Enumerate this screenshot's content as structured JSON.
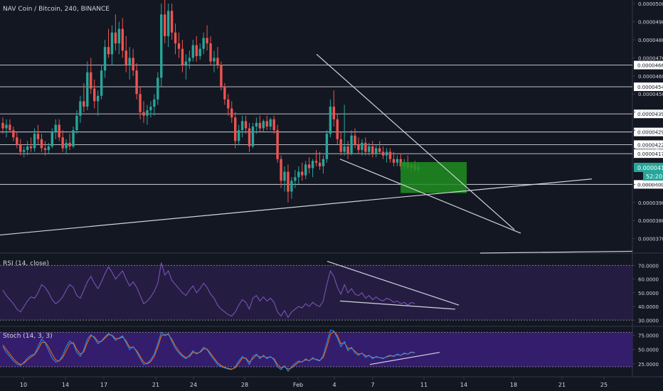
{
  "header": {
    "title": "NAV Coin / Bitcoin, 240, BINANCE"
  },
  "colors": {
    "background": "#131722",
    "up": "#26a69a",
    "down": "#ef5350",
    "rsi_line": "#7e57c2",
    "stoch_k": "#2196f3",
    "stoch_d": "#ff6d00",
    "band": "#2a1f4a",
    "stoch_band": "#3c1f7a",
    "drawing": "#d1d4dc",
    "box": "#1e8e1e",
    "axis_text": "#d1d4dc"
  },
  "chart_data": [
    {
      "type": "candlestick",
      "panel": "price",
      "title": "NAV Coin / Bitcoin, 240, BINANCE",
      "y_axis_ticks": [
        "0.0000500",
        "0.0000490",
        "0.0000480",
        "0.0000470",
        "0.0000460",
        "0.0000450",
        "0.0000440",
        "0.0000430",
        "0.0000420",
        "0.0000410",
        "0.0000400",
        "0.0000390",
        "0.0000380",
        "0.0000370"
      ],
      "horizontal_levels": [
        "0.0000466",
        "0.0000454",
        "0.0000439",
        "0.0000429",
        "0.0000422",
        "0.0000417",
        "0.0000400"
      ],
      "current_price": "0.0000410",
      "countdown": "52:20",
      "candles": [
        [
          4.34e-05,
          4.37e-05,
          4.28e-05,
          4.31e-05
        ],
        [
          4.31e-05,
          4.36e-05,
          4.26e-05,
          4.33e-05
        ],
        [
          4.33e-05,
          4.36e-05,
          4.29e-05,
          4.3e-05
        ],
        [
          4.3e-05,
          4.32e-05,
          4.24e-05,
          4.26e-05
        ],
        [
          4.26e-05,
          4.29e-05,
          4.2e-05,
          4.22e-05
        ],
        [
          4.22e-05,
          4.25e-05,
          4.16e-05,
          4.18e-05
        ],
        [
          4.18e-05,
          4.21e-05,
          4.15e-05,
          4.19e-05
        ],
        [
          4.19e-05,
          4.24e-05,
          4.16e-05,
          4.21e-05
        ],
        [
          4.21e-05,
          4.26e-05,
          4.18e-05,
          4.2e-05
        ],
        [
          4.2e-05,
          4.31e-05,
          4.18e-05,
          4.28e-05
        ],
        [
          4.28e-05,
          4.33e-05,
          4.22e-05,
          4.25e-05
        ],
        [
          4.25e-05,
          4.28e-05,
          4.18e-05,
          4.2e-05
        ],
        [
          4.2e-05,
          4.24e-05,
          4.16e-05,
          4.19e-05
        ],
        [
          4.19e-05,
          4.23e-05,
          4.17e-05,
          4.21e-05
        ],
        [
          4.21e-05,
          4.31e-05,
          4.2e-05,
          4.29e-05
        ],
        [
          4.29e-05,
          4.36e-05,
          4.25e-05,
          4.33e-05
        ],
        [
          4.33e-05,
          4.36e-05,
          4.24e-05,
          4.26e-05
        ],
        [
          4.26e-05,
          4.3e-05,
          4.18e-05,
          4.2e-05
        ],
        [
          4.2e-05,
          4.25e-05,
          4.17e-05,
          4.23e-05
        ],
        [
          4.23e-05,
          4.28e-05,
          4.19e-05,
          4.21e-05
        ],
        [
          4.21e-05,
          4.32e-05,
          4.2e-05,
          4.3e-05
        ],
        [
          4.3e-05,
          4.41e-05,
          4.28e-05,
          4.38e-05
        ],
        [
          4.38e-05,
          4.49e-05,
          4.34e-05,
          4.46e-05
        ],
        [
          4.46e-05,
          4.56e-05,
          4.4e-05,
          4.43e-05
        ],
        [
          4.43e-05,
          4.68e-05,
          4.41e-05,
          4.62e-05
        ],
        [
          4.62e-05,
          4.7e-05,
          4.5e-05,
          4.53e-05
        ],
        [
          4.53e-05,
          4.58e-05,
          4.42e-05,
          4.46e-05
        ],
        [
          4.46e-05,
          4.52e-05,
          4.38e-05,
          4.49e-05
        ],
        [
          4.49e-05,
          4.66e-05,
          4.47e-05,
          4.63e-05
        ],
        [
          4.63e-05,
          4.8e-05,
          4.59e-05,
          4.76e-05
        ],
        [
          4.76e-05,
          4.86e-05,
          4.7e-05,
          4.72e-05
        ],
        [
          4.72e-05,
          4.88e-05,
          4.66e-05,
          4.84e-05
        ],
        [
          4.84e-05,
          4.94e-05,
          4.74e-05,
          4.78e-05
        ],
        [
          4.78e-05,
          4.9e-05,
          4.72e-05,
          4.86e-05
        ],
        [
          4.86e-05,
          4.92e-05,
          4.7e-05,
          4.74e-05
        ],
        [
          4.74e-05,
          4.82e-05,
          4.62e-05,
          4.66e-05
        ],
        [
          4.66e-05,
          4.76e-05,
          4.58e-05,
          4.7e-05
        ],
        [
          4.7e-05,
          4.75e-05,
          4.6e-05,
          4.63e-05
        ],
        [
          4.63e-05,
          4.67e-05,
          4.47e-05,
          4.5e-05
        ],
        [
          4.5e-05,
          4.54e-05,
          4.36e-05,
          4.4e-05
        ],
        [
          4.4e-05,
          4.46e-05,
          4.34e-05,
          4.38e-05
        ],
        [
          4.38e-05,
          4.44e-05,
          4.33e-05,
          4.41e-05
        ],
        [
          4.41e-05,
          4.46e-05,
          4.37e-05,
          4.43e-05
        ],
        [
          4.43e-05,
          4.5e-05,
          4.38e-05,
          4.47e-05
        ],
        [
          4.47e-05,
          4.62e-05,
          4.44e-05,
          4.59e-05
        ],
        [
          4.59e-05,
          5e-05,
          4.54e-05,
          4.94e-05
        ],
        [
          4.94e-05,
          5.02e-05,
          4.78e-05,
          4.82e-05
        ],
        [
          4.82e-05,
          5e-05,
          4.76e-05,
          4.96e-05
        ],
        [
          4.96e-05,
          5e-05,
          4.8e-05,
          4.84e-05
        ],
        [
          4.84e-05,
          4.89e-05,
          4.72e-05,
          4.78e-05
        ],
        [
          4.78e-05,
          4.84e-05,
          4.7e-05,
          4.75e-05
        ],
        [
          4.75e-05,
          4.8e-05,
          4.62e-05,
          4.66e-05
        ],
        [
          4.66e-05,
          4.72e-05,
          4.58e-05,
          4.68e-05
        ],
        [
          4.68e-05,
          4.74e-05,
          4.64e-05,
          4.7e-05
        ],
        [
          4.7e-05,
          4.8e-05,
          4.68e-05,
          4.77e-05
        ],
        [
          4.77e-05,
          4.82e-05,
          4.68e-05,
          4.71e-05
        ],
        [
          4.71e-05,
          4.78e-05,
          4.69e-05,
          4.75e-05
        ],
        [
          4.75e-05,
          4.84e-05,
          4.72e-05,
          4.81e-05
        ],
        [
          4.81e-05,
          4.88e-05,
          4.74e-05,
          4.78e-05
        ],
        [
          4.78e-05,
          4.82e-05,
          4.66e-05,
          4.68e-05
        ],
        [
          4.68e-05,
          4.74e-05,
          4.62e-05,
          4.7e-05
        ],
        [
          4.7e-05,
          4.76e-05,
          4.64e-05,
          4.66e-05
        ],
        [
          4.66e-05,
          4.68e-05,
          4.52e-05,
          4.54e-05
        ],
        [
          4.54e-05,
          4.56e-05,
          4.44e-05,
          4.47e-05
        ],
        [
          4.47e-05,
          4.5e-05,
          4.38e-05,
          4.42e-05
        ],
        [
          4.42e-05,
          4.46e-05,
          4.34e-05,
          4.37e-05
        ],
        [
          4.37e-05,
          4.4e-05,
          4.2e-05,
          4.24e-05
        ],
        [
          4.24e-05,
          4.33e-05,
          4.22e-05,
          4.3e-05
        ],
        [
          4.3e-05,
          4.38e-05,
          4.26e-05,
          4.35e-05
        ],
        [
          4.35e-05,
          4.38e-05,
          4.28e-05,
          4.31e-05
        ],
        [
          4.31e-05,
          4.34e-05,
          4.18e-05,
          4.21e-05
        ],
        [
          4.21e-05,
          4.34e-05,
          4.2e-05,
          4.32e-05
        ],
        [
          4.32e-05,
          4.37e-05,
          4.28e-05,
          4.34e-05
        ],
        [
          4.34e-05,
          4.38e-05,
          4.29e-05,
          4.31e-05
        ],
        [
          4.31e-05,
          4.36e-05,
          4.29e-05,
          4.35e-05
        ],
        [
          4.35e-05,
          4.38e-05,
          4.3e-05,
          4.32e-05
        ],
        [
          4.32e-05,
          4.37e-05,
          4.3e-05,
          4.36e-05
        ],
        [
          4.36e-05,
          4.38e-05,
          4.28e-05,
          4.3e-05
        ],
        [
          4.3e-05,
          4.33e-05,
          4.12e-05,
          4.14e-05
        ],
        [
          4.14e-05,
          4.16e-05,
          3.98e-05,
          4.02e-05
        ],
        [
          4.02e-05,
          4.1e-05,
          3.96e-05,
          4.07e-05
        ],
        [
          4.07e-05,
          4.11e-05,
          3.9e-05,
          3.96e-05
        ],
        [
          3.96e-05,
          4.04e-05,
          3.92e-05,
          4.02e-05
        ],
        [
          4.02e-05,
          4.08e-05,
          3.98e-05,
          4.04e-05
        ],
        [
          4.04e-05,
          4.1e-05,
          4e-05,
          4.07e-05
        ],
        [
          4.07e-05,
          4.12e-05,
          4.02e-05,
          4.05e-05
        ],
        [
          4.05e-05,
          4.13e-05,
          4.03e-05,
          4.11e-05
        ],
        [
          4.11e-05,
          4.15e-05,
          4.06e-05,
          4.09e-05
        ],
        [
          4.09e-05,
          4.14e-05,
          4.04e-05,
          4.13e-05
        ],
        [
          4.13e-05,
          4.19e-05,
          4.1e-05,
          4.12e-05
        ],
        [
          4.12e-05,
          4.18e-05,
          4.08e-05,
          4.1e-05
        ],
        [
          4.1e-05,
          4.16e-05,
          4.06e-05,
          4.14e-05
        ],
        [
          4.14e-05,
          4.3e-05,
          4.12e-05,
          4.28e-05
        ],
        [
          4.28e-05,
          4.47e-05,
          4.26e-05,
          4.43e-05
        ],
        [
          4.43e-05,
          4.52e-05,
          4.32e-05,
          4.36e-05
        ],
        [
          4.36e-05,
          4.39e-05,
          4.22e-05,
          4.25e-05
        ],
        [
          4.25e-05,
          4.29e-05,
          4.16e-05,
          4.18e-05
        ],
        [
          4.18e-05,
          4.44e-05,
          4.16e-05,
          4.21e-05
        ],
        [
          4.21e-05,
          4.24e-05,
          4.14e-05,
          4.17e-05
        ],
        [
          4.17e-05,
          4.3e-05,
          4.16e-05,
          4.27e-05
        ],
        [
          4.27e-05,
          4.31e-05,
          4.2e-05,
          4.22e-05
        ],
        [
          4.22e-05,
          4.26e-05,
          4.17e-05,
          4.19e-05
        ],
        [
          4.19e-05,
          4.25e-05,
          4.16e-05,
          4.23e-05
        ],
        [
          4.23e-05,
          4.26e-05,
          4.16e-05,
          4.18e-05
        ],
        [
          4.18e-05,
          4.23e-05,
          4.16e-05,
          4.21e-05
        ],
        [
          4.21e-05,
          4.24e-05,
          4.15e-05,
          4.17e-05
        ],
        [
          4.17e-05,
          4.22e-05,
          4.15e-05,
          4.2e-05
        ],
        [
          4.2e-05,
          4.24e-05,
          4.17e-05,
          4.18e-05
        ],
        [
          4.18e-05,
          4.21e-05,
          4.14e-05,
          4.16e-05
        ],
        [
          4.16e-05,
          4.2e-05,
          4.12e-05,
          4.18e-05
        ],
        [
          4.18e-05,
          4.2e-05,
          4.12e-05,
          4.14e-05
        ],
        [
          4.14e-05,
          4.18e-05,
          4.1e-05,
          4.12e-05
        ],
        [
          4.12e-05,
          4.16e-05,
          4.1e-05,
          4.14e-05
        ],
        [
          4.14e-05,
          4.17e-05,
          4.08e-05,
          4.1e-05
        ],
        [
          4.1e-05,
          4.14e-05,
          4.08e-05,
          4.12e-05
        ],
        [
          4.12e-05,
          4.16e-05,
          4.08e-05,
          4.09e-05
        ],
        [
          4.09e-05,
          4.12e-05,
          4.07e-05,
          4.11e-05
        ],
        [
          4.11e-05,
          4.13e-05,
          4.07e-05,
          4.08e-05
        ],
        [
          4.08e-05,
          4.12e-05,
          4.06e-05,
          4.1e-05
        ]
      ],
      "x_ticks": [
        "10",
        "14",
        "17",
        "21",
        "24",
        "28",
        "Feb",
        "4",
        "7",
        "11",
        "14",
        "18",
        "21",
        "25"
      ]
    },
    {
      "type": "line",
      "panel": "rsi",
      "title": "RSI (14, close)",
      "y_axis_ticks": [
        "70.0000",
        "60.0000",
        "50.0000",
        "40.0000",
        "30.0000"
      ],
      "band": [
        30,
        70
      ],
      "series": [
        {
          "values": [
            52,
            48,
            45,
            42,
            38,
            36,
            40,
            44,
            47,
            46,
            50,
            56,
            54,
            50,
            45,
            42,
            44,
            47,
            52,
            56,
            54,
            48,
            46,
            52,
            58,
            62,
            57,
            53,
            58,
            64,
            69,
            65,
            60,
            63,
            66,
            60,
            55,
            58,
            54,
            48,
            42,
            44,
            47,
            51,
            57,
            72,
            63,
            66,
            59,
            56,
            53,
            50,
            48,
            52,
            55,
            50,
            53,
            57,
            54,
            49,
            46,
            41,
            38,
            36,
            34,
            33,
            36,
            41,
            45,
            43,
            38,
            46,
            48,
            44,
            47,
            44,
            46,
            43,
            36,
            33,
            37,
            32,
            36,
            38,
            40,
            39,
            42,
            40,
            43,
            41,
            40,
            44,
            56,
            66,
            62,
            54,
            49,
            56,
            50,
            53,
            49,
            48,
            50,
            46,
            48,
            45,
            47,
            45,
            44,
            46,
            45,
            43,
            44,
            42,
            43,
            41,
            43,
            42
          ]
        }
      ]
    },
    {
      "type": "line",
      "panel": "stoch",
      "title": "Stoch (14, 3, 3)",
      "y_axis_ticks": [
        "75.0000",
        "50.0000",
        "25.0000"
      ],
      "band": [
        20,
        80
      ],
      "series": [
        {
          "values": [
            55,
            45,
            38,
            30,
            25,
            22,
            28,
            35,
            40,
            42,
            55,
            68,
            62,
            48,
            35,
            28,
            30,
            40,
            55,
            65,
            60,
            45,
            38,
            50,
            68,
            76,
            70,
            60,
            65,
            72,
            78,
            74,
            66,
            70,
            74,
            62,
            50,
            55,
            46,
            34,
            24,
            26,
            32,
            42,
            60,
            80,
            74,
            78,
            64,
            52,
            44,
            38,
            34,
            40,
            48,
            42,
            46,
            54,
            50,
            40,
            32,
            24,
            20,
            18,
            16,
            15,
            20,
            30,
            38,
            34,
            24,
            38,
            42,
            34,
            40,
            34,
            38,
            32,
            20,
            15,
            22,
            12,
            20,
            26,
            30,
            28,
            34,
            30,
            36,
            32,
            30,
            40,
            62,
            84,
            82,
            70,
            55,
            64,
            48,
            54,
            44,
            40,
            44,
            36,
            40,
            34,
            38,
            36,
            34,
            38,
            40,
            38,
            42,
            40,
            44,
            42,
            46,
            44
          ]
        },
        {
          "values": [
            58,
            50,
            42,
            34,
            28,
            24,
            26,
            32,
            37,
            41,
            50,
            62,
            63,
            54,
            42,
            32,
            30,
            36,
            48,
            60,
            62,
            50,
            42,
            46,
            62,
            74,
            72,
            64,
            64,
            70,
            76,
            75,
            69,
            69,
            72,
            65,
            54,
            54,
            48,
            38,
            28,
            25,
            29,
            38,
            54,
            74,
            76,
            76,
            68,
            56,
            47,
            40,
            36,
            38,
            45,
            44,
            45,
            51,
            51,
            43,
            35,
            27,
            22,
            19,
            17,
            16,
            18,
            26,
            35,
            35,
            28,
            34,
            40,
            37,
            38,
            36,
            37,
            34,
            24,
            18,
            20,
            16,
            18,
            23,
            28,
            29,
            32,
            31,
            34,
            33,
            31,
            36,
            54,
            76,
            82,
            74,
            60,
            62,
            52,
            52,
            47,
            42,
            43,
            39,
            39,
            36,
            37,
            36,
            35,
            37,
            39,
            39,
            41,
            40,
            43,
            42,
            45,
            45
          ]
        }
      ]
    }
  ]
}
